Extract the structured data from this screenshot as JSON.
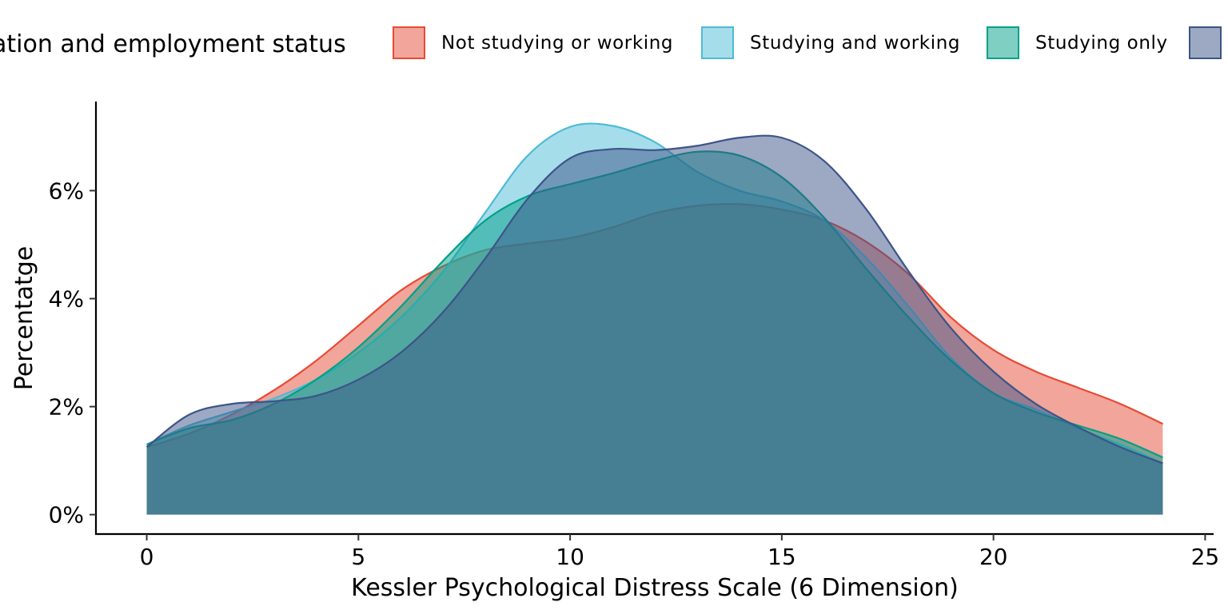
{
  "legend": {
    "title": "ation and employment status",
    "items": [
      {
        "label": "Not studying or working",
        "color": "#E64B35"
      },
      {
        "label": "Studying and working",
        "color": "#4DBBD5"
      },
      {
        "label": "Studying only",
        "color": "#00A087"
      },
      {
        "label": "",
        "color": "#3C5488"
      }
    ]
  },
  "chart_data": {
    "type": "area",
    "xlabel": "Kessler Psychological Distress Scale (6 Dimension)",
    "ylabel": "Percentatge",
    "xlim": [
      -1.2,
      25.2
    ],
    "ylim": [
      -0.0036,
      0.0765
    ],
    "x_ticks": [
      0,
      5,
      10,
      15,
      20,
      25
    ],
    "x_tick_labels": [
      "0",
      "5",
      "10",
      "15",
      "20",
      "25"
    ],
    "y_ticks": [
      0,
      0.02,
      0.04,
      0.06
    ],
    "y_tick_labels": [
      "0%",
      "2%",
      "4%",
      "6%"
    ],
    "grid": false,
    "legend_position": "top",
    "fill_opacity": 0.5,
    "series": [
      {
        "name": "Not studying or working",
        "color": "#E64B35",
        "x": [
          0,
          1,
          2,
          3,
          4,
          5,
          6,
          7,
          8,
          9,
          10,
          11,
          12,
          13,
          14,
          15,
          16,
          17,
          18,
          19,
          20,
          21,
          22,
          23,
          24
        ],
        "y": [
          0.0125,
          0.015,
          0.0185,
          0.023,
          0.0285,
          0.035,
          0.0415,
          0.046,
          0.049,
          0.0502,
          0.0512,
          0.0532,
          0.0558,
          0.0572,
          0.0575,
          0.0565,
          0.0545,
          0.0505,
          0.0445,
          0.0365,
          0.0305,
          0.0265,
          0.0235,
          0.0205,
          0.0168
        ]
      },
      {
        "name": "Studying and working",
        "color": "#4DBBD5",
        "x": [
          0,
          1,
          2,
          3,
          4,
          5,
          6,
          7,
          8,
          9,
          10,
          11,
          12,
          13,
          14,
          15,
          16,
          17,
          18,
          19,
          20,
          21,
          22,
          23,
          24
        ],
        "y": [
          0.013,
          0.0165,
          0.019,
          0.0215,
          0.025,
          0.03,
          0.0365,
          0.045,
          0.056,
          0.0665,
          0.0718,
          0.072,
          0.069,
          0.0635,
          0.06,
          0.058,
          0.0545,
          0.0475,
          0.0385,
          0.029,
          0.0225,
          0.0195,
          0.016,
          0.013,
          0.0095
        ]
      },
      {
        "name": "Studying only",
        "color": "#00A087",
        "x": [
          0,
          1,
          2,
          3,
          4,
          5,
          6,
          7,
          8,
          9,
          10,
          11,
          12,
          13,
          14,
          15,
          16,
          17,
          18,
          19,
          20,
          21,
          22,
          23,
          24
        ],
        "y": [
          0.013,
          0.016,
          0.0175,
          0.0205,
          0.025,
          0.031,
          0.0385,
          0.047,
          0.0545,
          0.059,
          0.0612,
          0.0632,
          0.0655,
          0.0672,
          0.0665,
          0.0625,
          0.055,
          0.0455,
          0.0365,
          0.0285,
          0.0225,
          0.019,
          0.0165,
          0.014,
          0.0106
        ]
      },
      {
        "name": "",
        "color": "#3C5488",
        "x": [
          0,
          1,
          2,
          3,
          4,
          5,
          6,
          7,
          8,
          9,
          10,
          11,
          12,
          13,
          14,
          15,
          16,
          17,
          18,
          19,
          20,
          21,
          22,
          23,
          24
        ],
        "y": [
          0.0125,
          0.0185,
          0.0205,
          0.021,
          0.022,
          0.025,
          0.03,
          0.0375,
          0.0475,
          0.0585,
          0.066,
          0.0677,
          0.0675,
          0.0683,
          0.0698,
          0.0698,
          0.0655,
          0.0565,
          0.045,
          0.0345,
          0.0265,
          0.0205,
          0.0162,
          0.0125,
          0.0095
        ]
      }
    ]
  }
}
